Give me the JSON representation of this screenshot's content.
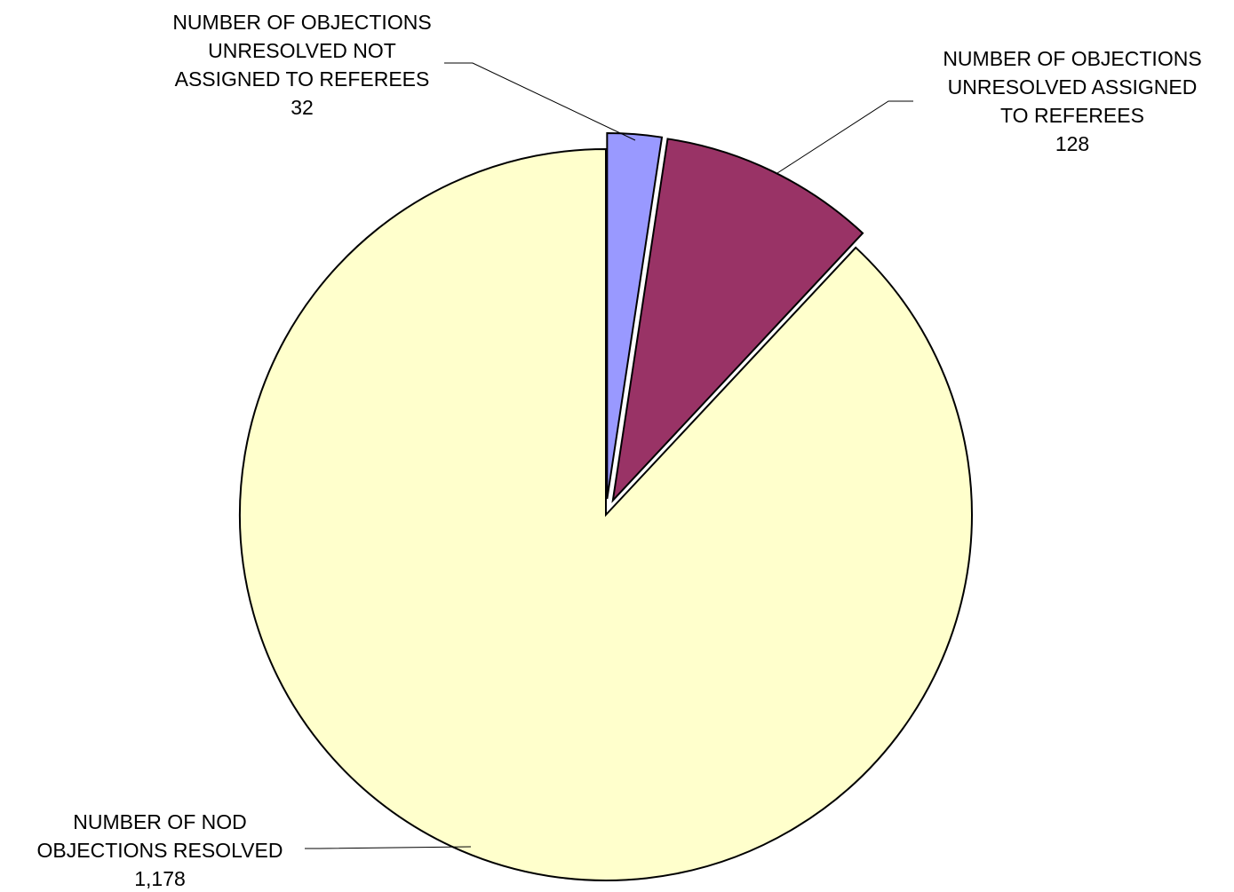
{
  "chart_data": {
    "type": "pie",
    "title": "",
    "start_angle_deg": 0,
    "direction": "clockwise",
    "slices": [
      {
        "label_lines": [
          "NUMBER OF OBJECTIONS",
          "UNRESOLVED NOT",
          "ASSIGNED TO REFEREES"
        ],
        "value": 32,
        "value_label": "32",
        "color": "#9999FF",
        "exploded": true
      },
      {
        "label_lines": [
          "NUMBER OF OBJECTIONS",
          "UNRESOLVED ASSIGNED",
          "TO REFEREES"
        ],
        "value": 128,
        "value_label": "128",
        "color": "#993366",
        "exploded": true
      },
      {
        "label_lines": [
          "NUMBER OF NOD",
          "OBJECTIONS RESOLVED"
        ],
        "value": 1178,
        "value_label": "1,178",
        "color": "#FFFFCC",
        "exploded": false
      }
    ],
    "data_labels": "outside-with-leader-lines",
    "legend": "none"
  }
}
